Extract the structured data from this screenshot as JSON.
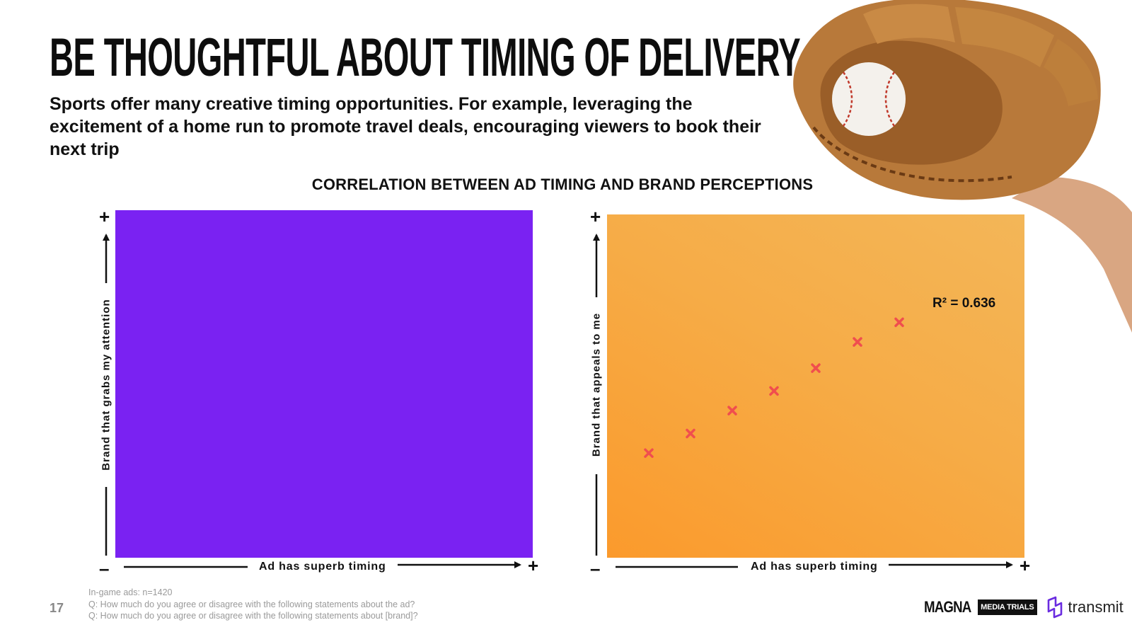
{
  "slide": {
    "title": "BE THOUGHTFUL ABOUT TIMING OF DELIVERY",
    "subtitle": "Sports offer many creative timing opportunities. For example, leveraging the excitement of a home run to promote travel deals, encouraging viewers to book their next trip",
    "page_number": "17",
    "footnotes": [
      "In-game ads: n=1420",
      "Q: How much do you agree or disagree with the following statements about the ad?",
      "Q: How much do you agree or disagree with the following statements about [brand]?"
    ],
    "logos": {
      "magna": "MAGNA",
      "media_trials": "MEDIA TRIALS",
      "transmit": "transmit"
    },
    "image": "baseball-glove-photo",
    "colors": {
      "left_panel": "#7a22f2",
      "right_panel_start": "#fb9a2c",
      "right_panel_end": "#f3b658",
      "marker": "#f04e4e"
    }
  },
  "chart_heading": "CORRELATION BETWEEN AD TIMING AND BRAND PERCEPTIONS",
  "axis_signs": {
    "plus": "+",
    "minus": "–"
  },
  "chart_data": [
    {
      "type": "scatter",
      "xlabel": "Ad has superb timing",
      "ylabel": "Brand that grabs my attention",
      "x": [],
      "y": [],
      "marker": "x",
      "background": "#7a22f2"
    },
    {
      "type": "scatter",
      "xlabel": "Ad has superb timing",
      "ylabel": "Brand that appeals to me",
      "x": [
        1,
        2,
        3,
        4,
        5,
        6,
        7
      ],
      "y": [
        0.7,
        1.3,
        2.0,
        2.6,
        3.3,
        4.1,
        4.7
      ],
      "xlim": [
        0,
        10
      ],
      "ylim": [
        -2.5,
        8.0
      ],
      "annotation": "R² = 0.636",
      "marker": "x",
      "marker_color": "#f04e4e"
    }
  ]
}
